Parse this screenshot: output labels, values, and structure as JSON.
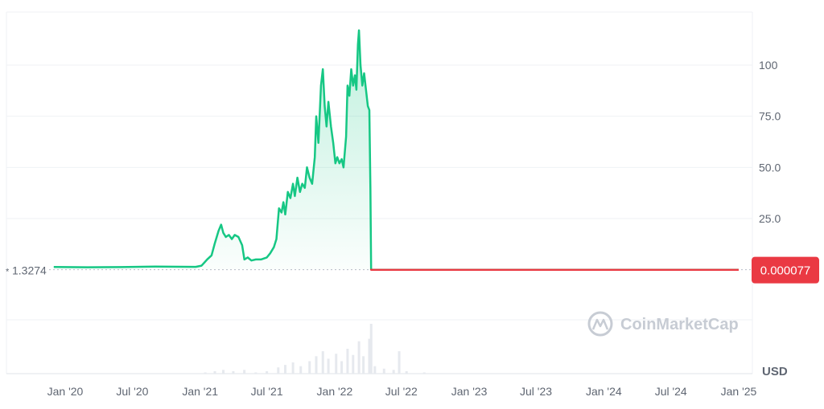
{
  "chart_data": {
    "type": "area",
    "xlabel": "",
    "ylabel": "",
    "unit_label": "USD",
    "watermark": "CoinMarketCap",
    "reference_value_label": "1.3274",
    "current_value_label": "0.000077",
    "ylim": [
      -25,
      128
    ],
    "y_ticks": [
      {
        "value": 25,
        "label": "25.0"
      },
      {
        "value": 50,
        "label": "50.0"
      },
      {
        "value": 75,
        "label": "75.0"
      },
      {
        "value": 100,
        "label": "100"
      }
    ],
    "x_ticks": [
      {
        "date": "2020-01-01",
        "label": "Jan '20"
      },
      {
        "date": "2020-07-01",
        "label": "Jul '20"
      },
      {
        "date": "2021-01-01",
        "label": "Jan '21"
      },
      {
        "date": "2021-07-01",
        "label": "Jul '21"
      },
      {
        "date": "2022-01-01",
        "label": "Jan '22"
      },
      {
        "date": "2022-07-01",
        "label": "Jul '22"
      },
      {
        "date": "2023-01-01",
        "label": "Jan '23"
      },
      {
        "date": "2023-07-01",
        "label": "Jul '23"
      },
      {
        "date": "2024-01-01",
        "label": "Jan '24"
      },
      {
        "date": "2024-07-01",
        "label": "Jul '24"
      },
      {
        "date": "2025-01-01",
        "label": "Jan '25"
      }
    ],
    "colors": {
      "up": "#16c784",
      "down": "#ea3943",
      "grid": "#eff2f5",
      "axis_text": "#5f6672"
    },
    "series": [
      {
        "points": [
          [
            "2019-12-01",
            1.33
          ],
          [
            "2020-03-01",
            1.2
          ],
          [
            "2020-06-01",
            1.3
          ],
          [
            "2020-09-01",
            1.5
          ],
          [
            "2020-12-20",
            1.4
          ],
          [
            "2021-01-05",
            2.0
          ],
          [
            "2021-01-20",
            5.0
          ],
          [
            "2021-02-01",
            7.0
          ],
          [
            "2021-02-10",
            13.0
          ],
          [
            "2021-02-20",
            19.0
          ],
          [
            "2021-02-27",
            22.0
          ],
          [
            "2021-03-05",
            18.0
          ],
          [
            "2021-03-12",
            16.0
          ],
          [
            "2021-03-20",
            17.0
          ],
          [
            "2021-03-28",
            15.0
          ],
          [
            "2021-04-05",
            17.0
          ],
          [
            "2021-04-15",
            16.0
          ],
          [
            "2021-04-25",
            12.0
          ],
          [
            "2021-05-01",
            5.0
          ],
          [
            "2021-05-10",
            6.0
          ],
          [
            "2021-05-20",
            4.5
          ],
          [
            "2021-06-01",
            5.0
          ],
          [
            "2021-06-15",
            5.0
          ],
          [
            "2021-07-01",
            6.0
          ],
          [
            "2021-07-10",
            8.0
          ],
          [
            "2021-07-20",
            11.0
          ],
          [
            "2021-07-27",
            15.0
          ],
          [
            "2021-08-03",
            30.0
          ],
          [
            "2021-08-10",
            28.0
          ],
          [
            "2021-08-15",
            33.0
          ],
          [
            "2021-08-20",
            27.0
          ],
          [
            "2021-08-27",
            38.0
          ],
          [
            "2021-09-03",
            35.0
          ],
          [
            "2021-09-10",
            42.0
          ],
          [
            "2021-09-15",
            36.0
          ],
          [
            "2021-09-22",
            45.0
          ],
          [
            "2021-09-29",
            38.0
          ],
          [
            "2021-10-05",
            42.0
          ],
          [
            "2021-10-12",
            40.0
          ],
          [
            "2021-10-18",
            50.0
          ],
          [
            "2021-10-25",
            45.0
          ],
          [
            "2021-11-01",
            42.0
          ],
          [
            "2021-11-08",
            55.0
          ],
          [
            "2021-11-12",
            75.0
          ],
          [
            "2021-11-18",
            62.0
          ],
          [
            "2021-11-25",
            90.0
          ],
          [
            "2021-11-30",
            98.0
          ],
          [
            "2021-12-05",
            80.0
          ],
          [
            "2021-12-10",
            70.0
          ],
          [
            "2021-12-15",
            82.0
          ],
          [
            "2021-12-22",
            70.0
          ],
          [
            "2021-12-28",
            62.0
          ],
          [
            "2022-01-03",
            52.0
          ],
          [
            "2022-01-08",
            55.0
          ],
          [
            "2022-01-14",
            52.0
          ],
          [
            "2022-01-20",
            54.0
          ],
          [
            "2022-01-25",
            50.0
          ],
          [
            "2022-02-01",
            65.0
          ],
          [
            "2022-02-05",
            90.0
          ],
          [
            "2022-02-10",
            85.0
          ],
          [
            "2022-02-15",
            98.0
          ],
          [
            "2022-02-20",
            90.0
          ],
          [
            "2022-02-25",
            95.0
          ],
          [
            "2022-03-01",
            88.0
          ],
          [
            "2022-03-05",
            110.0
          ],
          [
            "2022-03-08",
            117.0
          ],
          [
            "2022-03-12",
            100.0
          ],
          [
            "2022-03-17",
            90.0
          ],
          [
            "2022-03-22",
            96.0
          ],
          [
            "2022-03-27",
            88.0
          ],
          [
            "2022-04-01",
            80.0
          ],
          [
            "2022-04-05",
            78.0
          ],
          [
            "2022-04-08",
            40.0
          ],
          [
            "2022-04-10",
            0.0
          ],
          [
            "2022-05-01",
            7.7e-05
          ],
          [
            "2023-01-01",
            7.7e-05
          ],
          [
            "2024-01-01",
            7.7e-05
          ],
          [
            "2025-01-01",
            7.7e-05
          ]
        ]
      }
    ],
    "volume": [
      [
        "2021-01-15",
        1
      ],
      [
        "2021-02-10",
        2
      ],
      [
        "2021-03-05",
        3
      ],
      [
        "2021-04-01",
        2
      ],
      [
        "2021-05-01",
        3
      ],
      [
        "2021-06-01",
        1
      ],
      [
        "2021-07-01",
        2
      ],
      [
        "2021-08-01",
        5
      ],
      [
        "2021-08-20",
        7
      ],
      [
        "2021-09-10",
        9
      ],
      [
        "2021-10-01",
        6
      ],
      [
        "2021-10-25",
        10
      ],
      [
        "2021-11-12",
        14
      ],
      [
        "2021-11-30",
        18
      ],
      [
        "2021-12-15",
        12
      ],
      [
        "2022-01-05",
        16
      ],
      [
        "2022-01-20",
        10
      ],
      [
        "2022-02-05",
        20
      ],
      [
        "2022-02-20",
        15
      ],
      [
        "2022-03-08",
        26
      ],
      [
        "2022-03-20",
        14
      ],
      [
        "2022-04-05",
        28
      ],
      [
        "2022-04-10",
        40
      ],
      [
        "2022-04-20",
        6
      ],
      [
        "2022-05-15",
        4
      ],
      [
        "2022-06-10",
        3
      ],
      [
        "2022-06-25",
        18
      ],
      [
        "2022-07-15",
        2
      ],
      [
        "2022-09-01",
        1
      ]
    ]
  }
}
